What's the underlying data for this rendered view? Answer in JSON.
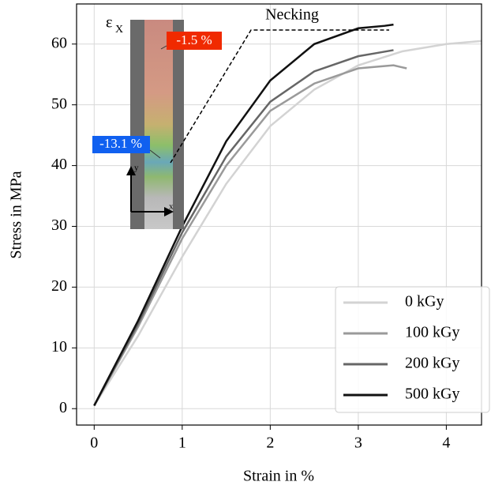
{
  "chart_data": {
    "type": "line",
    "xlabel": "Strain in %",
    "ylabel": "Stress in MPa",
    "xlim": [
      -0.2,
      4.4
    ],
    "ylim": [
      -2.7,
      66.6
    ],
    "xticks": [
      0,
      1,
      2,
      3,
      4
    ],
    "yticks": [
      0,
      10,
      20,
      30,
      40,
      50,
      60
    ],
    "grid": true,
    "legend": "lower right",
    "series": [
      {
        "name": "0 kGy",
        "color": "#d3d3d3",
        "x": [
          0,
          0.5,
          1,
          1.5,
          2,
          2.5,
          3,
          3.5,
          4,
          4.4
        ],
        "values": [
          0.5,
          12,
          25,
          37,
          46.5,
          52.5,
          56.5,
          58.8,
          60,
          60.5
        ]
      },
      {
        "name": "100 kGy",
        "color": "#9a9a9a",
        "x": [
          0,
          0.5,
          1,
          1.5,
          2,
          2.5,
          3,
          3.4,
          3.55
        ],
        "values": [
          0.5,
          13.5,
          28,
          40,
          49,
          53.5,
          56,
          56.5,
          56
        ]
      },
      {
        "name": "200 kGy",
        "color": "#666666",
        "x": [
          0,
          0.5,
          1,
          1.5,
          2,
          2.5,
          3,
          3.2,
          3.4
        ],
        "values": [
          0.5,
          14,
          29,
          41.5,
          50.5,
          55.5,
          58,
          58.5,
          59
        ]
      },
      {
        "name": "500 kGy",
        "color": "#111111",
        "x": [
          0,
          0.5,
          1,
          1.5,
          2,
          2.5,
          3,
          3.3,
          3.4
        ],
        "values": [
          0.5,
          14.5,
          30,
          44,
          54,
          60,
          62.6,
          63,
          63.2
        ]
      }
    ],
    "annotations": {
      "necking": "Necking",
      "strain_symbol": "ε",
      "strain_subscript": "X",
      "max_strain": "-1.5 %",
      "min_strain": "-13.1 %",
      "axis_x": "x",
      "axis_y": "y"
    }
  }
}
